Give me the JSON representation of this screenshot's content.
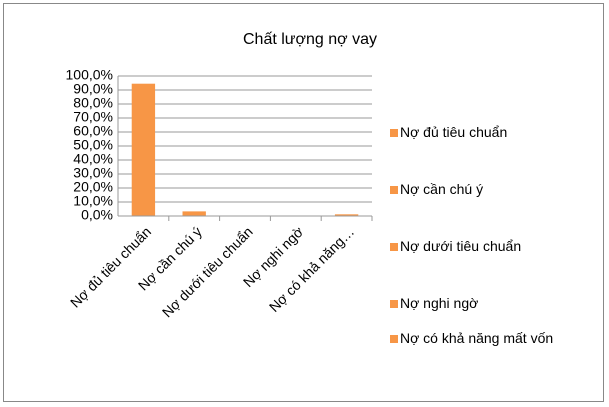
{
  "chart_data": {
    "type": "bar",
    "title": "Chất lượng nợ vay",
    "categories": [
      "Nợ đủ tiêu chuẩn",
      "Nợ cần chú ý",
      "Nợ dưới tiêu chuẩn",
      "Nợ nghi ngờ",
      "Nợ có khả năng mất vốn"
    ],
    "x_tick_labels": [
      "Nợ đủ tiêu chuẩn",
      "Nợ cần chú ý",
      "Nợ dưới tiêu chuẩn",
      "Nợ nghi ngờ",
      "Nợ có khả năng…"
    ],
    "values": [
      94.5,
      3.3,
      0.3,
      0.3,
      1.2
    ],
    "color": "#f79646",
    "ylim": [
      0,
      100
    ],
    "yticks": [
      {
        "value": 0,
        "label": "0,0%"
      },
      {
        "value": 10,
        "label": "10,0%"
      },
      {
        "value": 20,
        "label": "20,0%"
      },
      {
        "value": 30,
        "label": "30,0%"
      },
      {
        "value": 40,
        "label": "40,0%"
      },
      {
        "value": 50,
        "label": "50,0%"
      },
      {
        "value": 60,
        "label": "60,0%"
      },
      {
        "value": 70,
        "label": "70,0%"
      },
      {
        "value": 80,
        "label": "80,0%"
      },
      {
        "value": 90,
        "label": "90,0%"
      },
      {
        "value": 100,
        "label": "100,0%"
      }
    ],
    "grid": true,
    "legend": "right"
  }
}
